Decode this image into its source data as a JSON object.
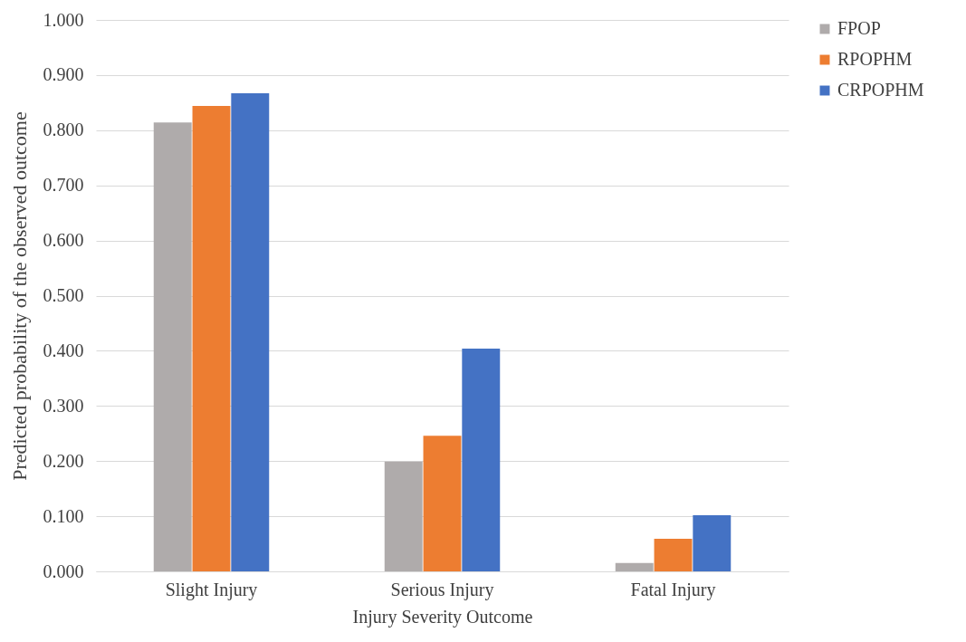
{
  "chart_data": {
    "type": "bar",
    "xlabel": "Injury Severity Outcome",
    "ylabel": "Predicted probability of the observed outcome",
    "categories": [
      "Slight Injury",
      "Serious Injury",
      "Fatal Injury"
    ],
    "series": [
      {
        "name": "FPOP",
        "color": "#afabab",
        "values": [
          0.814,
          0.199,
          0.015
        ]
      },
      {
        "name": "RPOPHM",
        "color": "#ed7d31",
        "values": [
          0.844,
          0.246,
          0.059
        ]
      },
      {
        "name": "CRPOPHM",
        "color": "#4472c4",
        "values": [
          0.867,
          0.404,
          0.102
        ]
      }
    ],
    "ylim": [
      0,
      1
    ],
    "yticks": [
      {
        "value": 0,
        "label": "0.000"
      },
      {
        "value": 0.1,
        "label": "0.100"
      },
      {
        "value": 0.2,
        "label": "0.200"
      },
      {
        "value": 0.3,
        "label": "0.300"
      },
      {
        "value": 0.4,
        "label": "0.400"
      },
      {
        "value": 0.5,
        "label": "0.500"
      },
      {
        "value": 0.6,
        "label": "0.600"
      },
      {
        "value": 0.7,
        "label": "0.700"
      },
      {
        "value": 0.8,
        "label": "0.800"
      },
      {
        "value": 0.9,
        "label": "0.900"
      },
      {
        "value": 1,
        "label": "1.000"
      }
    ],
    "grid": "y",
    "legend": "right"
  }
}
